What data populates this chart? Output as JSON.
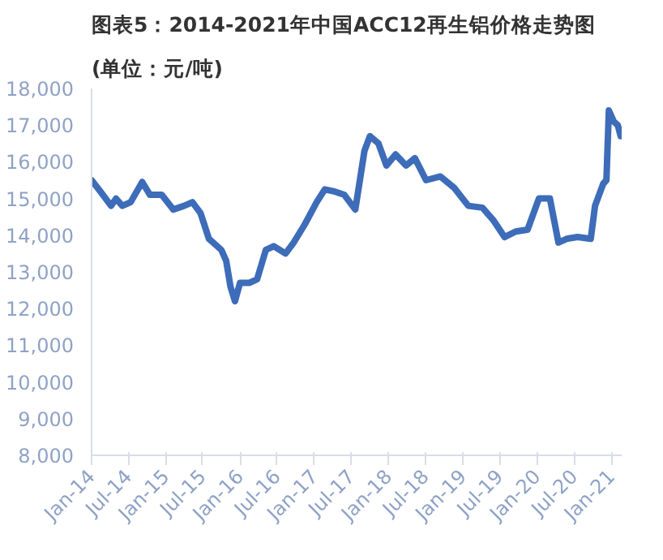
{
  "chart_data": {
    "type": "line",
    "title": "图表5：2014-2021年中国ACC12再生铝价格走势图",
    "subtitle": "(单位：元/吨)",
    "x": [
      "2014-01-01",
      "2014-02-12",
      "2014-04-07",
      "2014-05-01",
      "2014-06-01",
      "2014-07-12",
      "2014-09-07",
      "2014-10-15",
      "2014-12-12",
      "2015-02-07",
      "2015-04-01",
      "2015-05-12",
      "2015-06-21",
      "2015-08-01",
      "2015-10-01",
      "2015-10-25",
      "2015-11-15",
      "2015-12-07",
      "2016-01-01",
      "2016-02-15",
      "2016-03-25",
      "2016-05-07",
      "2016-06-15",
      "2016-08-12",
      "2016-09-21",
      "2016-11-15",
      "2017-01-12",
      "2017-02-21",
      "2017-04-04",
      "2017-05-28",
      "2017-07-21",
      "2017-09-04",
      "2017-10-01",
      "2017-11-12",
      "2017-12-21",
      "2018-02-04",
      "2018-03-28",
      "2018-05-10",
      "2018-07-04",
      "2018-09-12",
      "2018-11-18",
      "2019-01-28",
      "2019-04-07",
      "2019-06-01",
      "2019-07-25",
      "2019-09-18",
      "2019-11-15",
      "2020-01-10",
      "2020-03-04",
      "2020-04-15",
      "2020-05-25",
      "2020-07-18",
      "2020-09-21",
      "2020-10-12",
      "2020-11-21",
      "2020-12-07",
      "2020-12-19",
      "2021-01-12",
      "2021-02-01",
      "2021-02-15"
    ],
    "series": [
      {
        "color": "#3d6cb9",
        "values": [
          15500,
          15200,
          14800,
          15000,
          14800,
          14900,
          15450,
          15100,
          15100,
          14700,
          14800,
          14900,
          14600,
          13900,
          13600,
          13300,
          12600,
          12200,
          12700,
          12700,
          12800,
          13600,
          13700,
          13500,
          13800,
          14300,
          14900,
          15250,
          15200,
          15100,
          14700,
          16300,
          16700,
          16500,
          15900,
          16200,
          15900,
          16100,
          15500,
          15600,
          15300,
          14800,
          14750,
          14400,
          13950,
          14100,
          14150,
          15000,
          15000,
          13800,
          13900,
          13950,
          13900,
          14800,
          15400,
          15500,
          17400,
          17100,
          17000,
          16700
        ]
      }
    ],
    "xlim": [
      "2014-01-01",
      "2021-02-20"
    ],
    "xticks": [
      {
        "value": "2014-01-01",
        "label": "Jan-14"
      },
      {
        "value": "2014-07-01",
        "label": "Jul-14"
      },
      {
        "value": "2015-01-01",
        "label": "Jan-15"
      },
      {
        "value": "2015-07-01",
        "label": "Jul-15"
      },
      {
        "value": "2016-01-01",
        "label": "Jan-16"
      },
      {
        "value": "2016-07-01",
        "label": "Jul-16"
      },
      {
        "value": "2017-01-01",
        "label": "Jan-17"
      },
      {
        "value": "2017-07-01",
        "label": "Jul-17"
      },
      {
        "value": "2018-01-01",
        "label": "Jan-18"
      },
      {
        "value": "2018-07-01",
        "label": "Jul-18"
      },
      {
        "value": "2019-01-01",
        "label": "Jan-19"
      },
      {
        "value": "2019-07-01",
        "label": "Jul-19"
      },
      {
        "value": "2020-01-01",
        "label": "Jan-20"
      },
      {
        "value": "2020-07-01",
        "label": "Jul-20"
      },
      {
        "value": "2021-01-01",
        "label": "Jan-21"
      }
    ],
    "ylim": [
      8000,
      18000
    ],
    "yticks": [
      {
        "value": 8000,
        "label": "8,000"
      },
      {
        "value": 9000,
        "label": "9,000"
      },
      {
        "value": 10000,
        "label": "10,000"
      },
      {
        "value": 11000,
        "label": "11,000"
      },
      {
        "value": 12000,
        "label": "12,000"
      },
      {
        "value": 13000,
        "label": "13,000"
      },
      {
        "value": 14000,
        "label": "14,000"
      },
      {
        "value": 15000,
        "label": "15,000"
      },
      {
        "value": 16000,
        "label": "16,000"
      },
      {
        "value": 17000,
        "label": "17,000"
      },
      {
        "value": 18000,
        "label": "18,000"
      }
    ],
    "grid": false,
    "marker": "none",
    "line_style": "solid"
  }
}
